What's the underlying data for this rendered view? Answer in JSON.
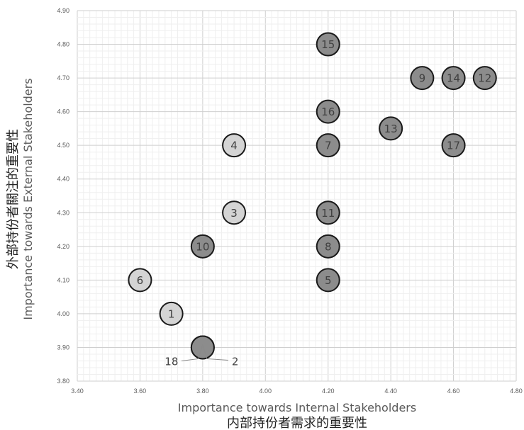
{
  "chart_data": {
    "type": "scatter",
    "xlabel": "Importance towards Internal Stakeholders",
    "xlabel_zh": "内部持份者需求的重要性",
    "ylabel": "Importance towards External Stakeholders",
    "ylabel_zh": "外部持份者關注的重要性",
    "xlim": [
      3.4,
      4.8
    ],
    "ylim": [
      3.8,
      4.9
    ],
    "x_ticks": [
      "3.40",
      "3.60",
      "3.80",
      "4.00",
      "4.20",
      "4.40",
      "4.60",
      "4.80"
    ],
    "y_ticks": [
      "3.80",
      "3.90",
      "4.00",
      "4.10",
      "4.20",
      "4.30",
      "4.40",
      "4.50",
      "4.60",
      "4.70",
      "4.80",
      "4.90"
    ],
    "grid": true,
    "colors": {
      "light": "#d4d4d4",
      "dark": "#8c8c8c",
      "stroke": "#1a1a1a"
    },
    "points": [
      {
        "label": "1",
        "x": 3.7,
        "y": 4.0,
        "shade": "light"
      },
      {
        "label": "3",
        "x": 3.9,
        "y": 4.3,
        "shade": "light"
      },
      {
        "label": "4",
        "x": 3.9,
        "y": 4.5,
        "shade": "light"
      },
      {
        "label": "5",
        "x": 4.2,
        "y": 4.1,
        "shade": "dark"
      },
      {
        "label": "6",
        "x": 3.6,
        "y": 4.1,
        "shade": "light"
      },
      {
        "label": "7",
        "x": 4.2,
        "y": 4.5,
        "shade": "dark"
      },
      {
        "label": "8",
        "x": 4.2,
        "y": 4.2,
        "shade": "dark"
      },
      {
        "label": "9",
        "x": 4.5,
        "y": 4.7,
        "shade": "dark"
      },
      {
        "label": "10",
        "x": 3.8,
        "y": 4.2,
        "shade": "dark"
      },
      {
        "label": "11",
        "x": 4.2,
        "y": 4.3,
        "shade": "dark"
      },
      {
        "label": "12",
        "x": 4.7,
        "y": 4.7,
        "shade": "dark"
      },
      {
        "label": "13",
        "x": 4.4,
        "y": 4.55,
        "shade": "dark"
      },
      {
        "label": "14",
        "x": 4.6,
        "y": 4.7,
        "shade": "dark"
      },
      {
        "label": "15",
        "x": 4.2,
        "y": 4.8,
        "shade": "dark"
      },
      {
        "label": "16",
        "x": 4.2,
        "y": 4.6,
        "shade": "dark"
      },
      {
        "label": "17",
        "x": 4.6,
        "y": 4.5,
        "shade": "dark"
      },
      {
        "label": "18",
        "x": 3.8,
        "y": 3.9,
        "shade": "dark",
        "annotated": true
      },
      {
        "label": "2",
        "x": 3.8,
        "y": 3.9,
        "shade": "dark",
        "annotated": true
      }
    ]
  }
}
